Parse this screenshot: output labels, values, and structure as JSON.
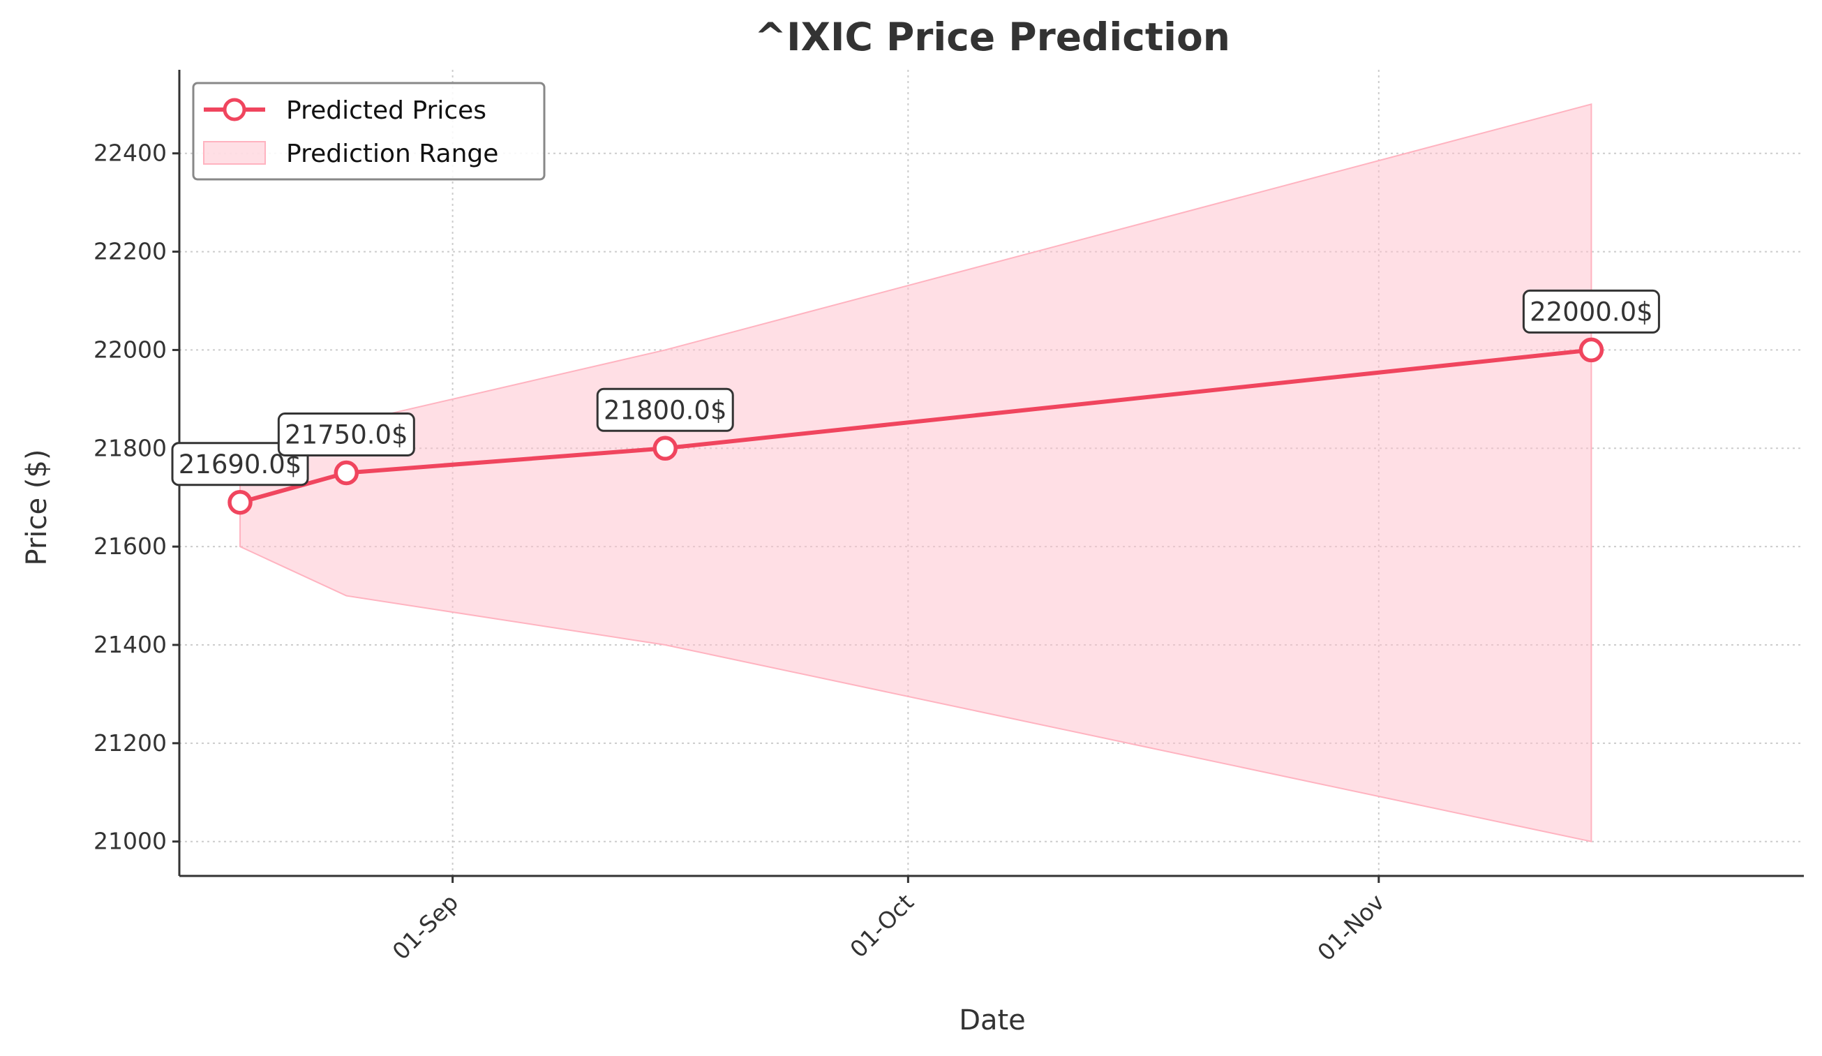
{
  "chart_data": {
    "type": "line",
    "title": "^IXIC Price Prediction",
    "xlabel": "Date",
    "ylabel": "Price ($)",
    "x_tick_labels": [
      "01-Sep",
      "01-Oct",
      "01-Nov"
    ],
    "x_tick_dates": [
      "2025-09-01",
      "2025-10-01",
      "2025-11-01"
    ],
    "x_range": [
      "2025-08-14",
      "2025-11-29"
    ],
    "y_ticks": [
      21000,
      21200,
      21400,
      21600,
      21800,
      22000,
      22200,
      22400
    ],
    "ylim": [
      20930,
      22570
    ],
    "grid": true,
    "legend_position": "top-left",
    "series": [
      {
        "name": "Predicted Prices",
        "color": "#f0455e",
        "x": [
          "2025-08-18",
          "2025-08-25",
          "2025-09-15",
          "2025-11-15"
        ],
        "values": [
          21690,
          21750,
          21800,
          22000
        ],
        "point_labels": [
          "21690.0$",
          "21750.0$",
          "21800.0$",
          "22000.0$"
        ]
      }
    ],
    "range": {
      "name": "Prediction Range",
      "color": "#ffc0cb",
      "x": [
        "2025-08-18",
        "2025-08-25",
        "2025-09-15",
        "2025-11-15"
      ],
      "lower": [
        21600,
        21500,
        21400,
        21000
      ],
      "upper": [
        21780,
        21850,
        22000,
        22500
      ]
    }
  }
}
